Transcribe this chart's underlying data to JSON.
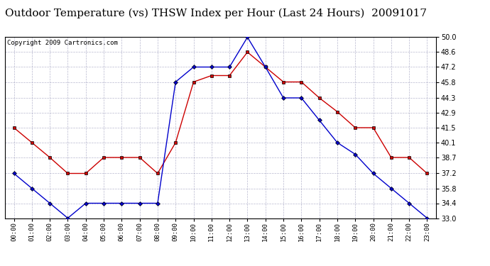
{
  "title": "Outdoor Temperature (vs) THSW Index per Hour (Last 24 Hours)  20091017",
  "copyright": "Copyright 2009 Cartronics.com",
  "hours": [
    "00:00",
    "01:00",
    "02:00",
    "03:00",
    "04:00",
    "05:00",
    "06:00",
    "07:00",
    "08:00",
    "09:00",
    "10:00",
    "11:00",
    "12:00",
    "13:00",
    "14:00",
    "15:00",
    "16:00",
    "17:00",
    "18:00",
    "19:00",
    "20:00",
    "21:00",
    "22:00",
    "23:00"
  ],
  "temp_red": [
    41.5,
    40.1,
    38.7,
    37.2,
    37.2,
    38.7,
    38.7,
    38.7,
    37.2,
    40.1,
    45.8,
    46.4,
    46.4,
    48.6,
    47.2,
    45.8,
    45.8,
    44.3,
    43.0,
    41.5,
    41.5,
    38.7,
    38.7,
    37.2
  ],
  "thsw_blue": [
    37.2,
    35.8,
    34.4,
    33.0,
    34.4,
    34.4,
    34.4,
    34.4,
    34.4,
    45.8,
    47.2,
    47.2,
    47.2,
    50.0,
    47.2,
    44.3,
    44.3,
    42.2,
    40.1,
    39.0,
    37.2,
    35.8,
    34.4,
    33.0
  ],
  "ylim_min": 33.0,
  "ylim_max": 50.0,
  "yticks": [
    33.0,
    34.4,
    35.8,
    37.2,
    38.7,
    40.1,
    41.5,
    42.9,
    44.3,
    45.8,
    47.2,
    48.6,
    50.0
  ],
  "red_color": "#cc0000",
  "blue_color": "#0000cc",
  "grid_color": "#9999bb",
  "background_color": "#ffffff",
  "title_fontsize": 11,
  "copyright_fontsize": 6.5
}
